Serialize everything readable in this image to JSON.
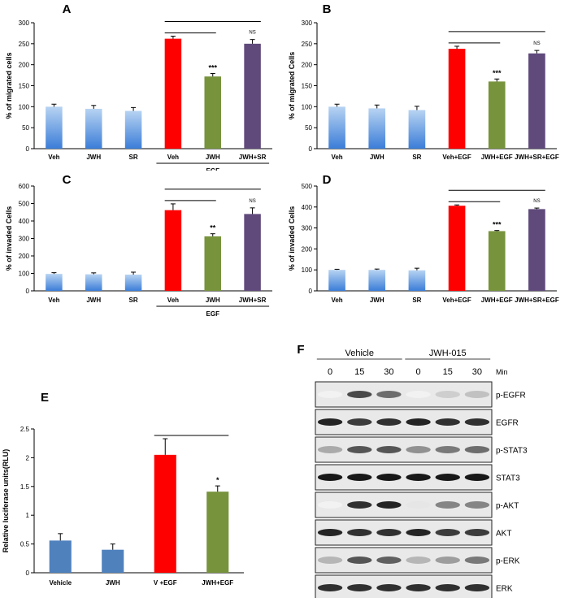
{
  "chart_data": [
    {
      "panel": "A",
      "type": "bar",
      "ylabel": "% of migrated cells",
      "ylim": [
        0,
        300
      ],
      "yticks": [
        0,
        50,
        100,
        150,
        200,
        250,
        300
      ],
      "categories": [
        "Veh",
        "JWH",
        "SR",
        "Veh",
        "JWH",
        "JWH+SR"
      ],
      "values": [
        100,
        95,
        90,
        262,
        172,
        250
      ],
      "errors": [
        6,
        8,
        8,
        6,
        7,
        10
      ],
      "colors": [
        "gradient-blue",
        "gradient-blue",
        "gradient-blue",
        "#ff0000",
        "#77933c",
        "#604a7b"
      ],
      "annotations": [
        "",
        "",
        "",
        "",
        "***",
        "NS"
      ],
      "group_label": "EGF",
      "group_span": [
        3,
        5
      ]
    },
    {
      "panel": "B",
      "type": "bar",
      "ylabel": "% of migrated Cells",
      "ylim": [
        0,
        300
      ],
      "yticks": [
        0,
        50,
        100,
        150,
        200,
        250,
        300
      ],
      "categories": [
        "Veh",
        "JWH",
        "SR",
        "Veh+EGF",
        "JWH+EGF",
        "JWH+SR+EGF"
      ],
      "values": [
        100,
        96,
        92,
        238,
        160,
        227
      ],
      "errors": [
        6,
        8,
        9,
        6,
        6,
        7
      ],
      "colors": [
        "gradient-blue",
        "gradient-blue",
        "gradient-blue",
        "#ff0000",
        "#77933c",
        "#604a7b"
      ],
      "annotations": [
        "",
        "",
        "",
        "",
        "***",
        "NS"
      ]
    },
    {
      "panel": "C",
      "type": "bar",
      "ylabel": "% of invaded Cells",
      "ylim": [
        0,
        600
      ],
      "yticks": [
        0,
        100,
        200,
        300,
        400,
        500,
        600
      ],
      "categories": [
        "Veh",
        "JWH",
        "SR",
        "Veh",
        "JWH",
        "JWH+SR"
      ],
      "values": [
        97,
        95,
        93,
        462,
        312,
        440
      ],
      "errors": [
        7,
        8,
        14,
        36,
        15,
        35
      ],
      "colors": [
        "gradient-blue",
        "gradient-blue",
        "gradient-blue",
        "#ff0000",
        "#77933c",
        "#604a7b"
      ],
      "annotations": [
        "",
        "",
        "",
        "",
        "**",
        "NS"
      ],
      "group_label": "EGF",
      "group_span": [
        3,
        5
      ]
    },
    {
      "panel": "D",
      "type": "bar",
      "ylabel": "% of invaded Cells",
      "ylim": [
        0,
        500
      ],
      "yticks": [
        0,
        100,
        200,
        300,
        400,
        500
      ],
      "categories": [
        "Veh",
        "JWH",
        "SR",
        "Veh+EGF",
        "JWH+EGF",
        "JWH+SR+EGF"
      ],
      "values": [
        100,
        100,
        98,
        406,
        285,
        390
      ],
      "errors": [
        3,
        4,
        10,
        4,
        3,
        5
      ],
      "colors": [
        "gradient-blue",
        "gradient-blue",
        "gradient-blue",
        "#ff0000",
        "#77933c",
        "#604a7b"
      ],
      "annotations": [
        "",
        "",
        "",
        "",
        "***",
        "NS"
      ]
    },
    {
      "panel": "E",
      "type": "bar",
      "ylabel": "Relative luciferase units(RLU)",
      "ylim": [
        0,
        2.5
      ],
      "yticks": [
        0,
        0.5,
        1,
        1.5,
        2,
        2.5
      ],
      "categories": [
        "Vehicle",
        "JWH",
        "V +EGF",
        "JWH+EGF"
      ],
      "values": [
        0.56,
        0.4,
        2.05,
        1.41
      ],
      "errors": [
        0.12,
        0.1,
        0.28,
        0.1
      ],
      "colors": [
        "#4f81bd",
        "#4f81bd",
        "#ff0000",
        "#77933c"
      ],
      "annotations": [
        "",
        "",
        "",
        "*"
      ]
    }
  ],
  "blot": {
    "panel": "F",
    "groups": [
      "Vehicle",
      "JWH-015"
    ],
    "time_points": [
      "0",
      "15",
      "30",
      "0",
      "15",
      "30"
    ],
    "unit": "Min",
    "rows": [
      "p-EGFR",
      "EGFR",
      "p-STAT3",
      "STAT3",
      "p-AKT",
      "AKT",
      "p-ERK",
      "ERK"
    ]
  }
}
